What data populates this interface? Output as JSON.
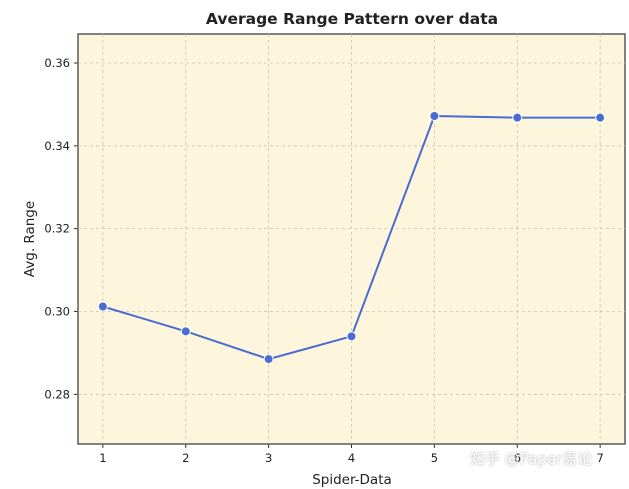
{
  "chart_data": {
    "type": "line",
    "title": "Average Range Pattern over data",
    "xlabel": "Spider-Data",
    "ylabel": "Avg. Range",
    "x": [
      1,
      2,
      3,
      4,
      5,
      6,
      7
    ],
    "series": [
      {
        "values": [
          0.3012,
          0.2952,
          0.2885,
          0.294,
          0.3472,
          0.3468,
          0.3468
        ]
      }
    ],
    "xlim": [
      0.7,
      7.3
    ],
    "ylim": [
      0.268,
      0.367
    ],
    "xticks": [
      "1",
      "2",
      "3",
      "4",
      "5",
      "6",
      "7"
    ],
    "yticks": [
      "0.28",
      "0.30",
      "0.32",
      "0.34",
      "0.36"
    ],
    "grid": true,
    "colors": {
      "line": "#4a6bd0",
      "marker": "#4a6bd0",
      "background": "#fdf6dc",
      "grid": "#c8c3b0"
    }
  },
  "watermark": "知乎 @Paper易论"
}
